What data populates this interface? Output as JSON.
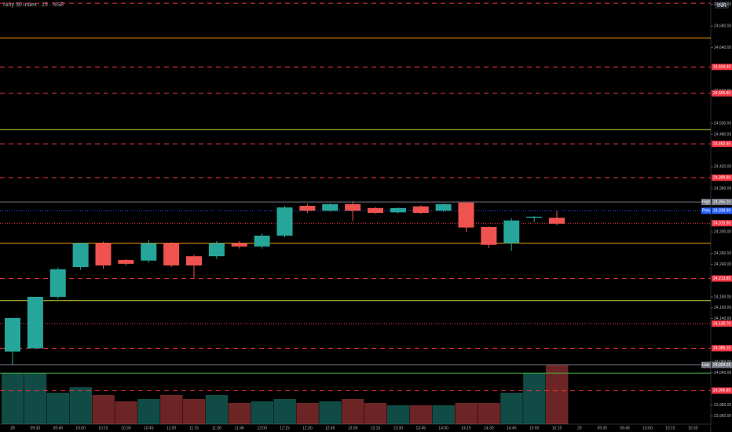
{
  "chart_data": {
    "type": "candlestick",
    "title": "Nifty 50 Index · 15 · NSE",
    "currency": "INR",
    "categories": [
      "28",
      "09:30",
      "09:45",
      "10:00",
      "10:15",
      "10:30",
      "10:45",
      "11:00",
      "11:15",
      "11:30",
      "11:45",
      "12:00",
      "12:15",
      "12:30",
      "12:45",
      "13:00",
      "13:15",
      "13:30",
      "13:45",
      "14:00",
      "14:15",
      "14:30",
      "14:45",
      "15:00",
      "15:15",
      "29",
      "09:30",
      "09:45",
      "10:00",
      "10:15",
      "10:30"
    ],
    "open": [
      24079,
      24085,
      24180,
      24235,
      24279,
      24248,
      24247,
      24279,
      24255,
      24255,
      24279,
      24273,
      24293,
      24348,
      24339,
      24351,
      24344,
      24336,
      24347,
      24339,
      24354,
      24309,
      24279,
      24326,
      24326,
      null,
      null,
      null,
      null,
      null,
      null
    ],
    "high": [
      24141,
      24180,
      24234,
      24280,
      24282,
      24250,
      24285,
      24281,
      24258,
      24283,
      24283,
      24297,
      24348,
      24352,
      24353,
      24356,
      24346,
      24345,
      24349,
      24352,
      24356,
      24310,
      24325,
      24329,
      24338,
      null,
      null,
      null,
      null,
      null,
      null
    ],
    "low": [
      24054,
      24085,
      24176,
      24230,
      24232,
      24238,
      24243,
      24235,
      24215,
      24250,
      24269,
      24269,
      24290,
      24335,
      24337,
      24320,
      24333,
      24334,
      24333,
      24337,
      24300,
      24270,
      24265,
      24318,
      24312,
      null,
      null,
      null,
      null,
      null,
      null
    ],
    "close": [
      24141,
      24180,
      24231,
      24279,
      24238,
      24241,
      24279,
      24238,
      24238,
      24279,
      24273,
      24293,
      24345,
      24339,
      24351,
      24339,
      24335,
      24344,
      24335,
      24351,
      24308,
      24276,
      24321,
      24328,
      24315,
      null,
      null,
      null,
      null,
      null,
      null
    ],
    "volume": [
      65,
      65,
      40,
      47,
      37,
      29,
      32,
      37,
      32,
      37,
      27,
      29,
      32,
      27,
      29,
      32,
      27,
      24,
      24,
      24,
      27,
      27,
      40,
      65,
      75,
      null,
      null,
      null,
      null,
      null,
      null
    ],
    "up_color": "#26a69a",
    "down_color": "#ef5350",
    "ylim": [
      23945,
      24728
    ],
    "yticks": [
      {
        "value": 24720,
        "label": "24,720.00"
      },
      {
        "value": 24680,
        "label": "24,680.00"
      },
      {
        "value": 24640,
        "label": "24,640.00"
      },
      {
        "value": 24560,
        "label": "24,560.00"
      },
      {
        "value": 24500,
        "label": "24,500.00"
      },
      {
        "value": 24480,
        "label": "24,480.00"
      },
      {
        "value": 24420,
        "label": "24,420.00"
      },
      {
        "value": 24380,
        "label": "24,380.00"
      },
      {
        "value": 24300,
        "label": "24,300.00"
      },
      {
        "value": 24260,
        "label": "24,260.00"
      },
      {
        "value": 24240,
        "label": "24,240.00"
      },
      {
        "value": 24180,
        "label": "24,180.00"
      },
      {
        "value": 24160,
        "label": "24,160.00"
      },
      {
        "value": 24140,
        "label": "24,140.00"
      },
      {
        "value": 24060,
        "label": "24,060.00"
      },
      {
        "value": 24040,
        "label": "24,040.00"
      },
      {
        "value": 23980,
        "label": "23,980.00"
      },
      {
        "value": 23960,
        "label": "23,960.00"
      }
    ],
    "levels": [
      {
        "value": 24722,
        "color": "#f23645",
        "style": "dashed"
      },
      {
        "value": 24658,
        "color": "#ff9800",
        "style": "solid"
      },
      {
        "value": 24604.4,
        "label": "24,604.40",
        "color": "#f23645",
        "style": "dashed"
      },
      {
        "value": 24555.8,
        "label": "24,555.80",
        "color": "#f23645",
        "style": "dashed"
      },
      {
        "value": 24489,
        "color": "#c6d33a",
        "style": "solid"
      },
      {
        "value": 24462.45,
        "label": "24,462.45",
        "color": "#f23645",
        "style": "dashed"
      },
      {
        "value": 24399.8,
        "label": "24,399.80",
        "color": "#f23645",
        "style": "dashed"
      },
      {
        "value": 24355.1,
        "label": "24,355.10",
        "tag": "High",
        "color": "#787b86",
        "style": "solid"
      },
      {
        "value": 24338.9,
        "label": "24,338.90",
        "tag": "Prev",
        "color": "#2962ff",
        "style": "dotted"
      },
      {
        "value": 24315.9,
        "label": "24,315.90",
        "color": "#f23645",
        "style": "dotted"
      },
      {
        "value": 24279,
        "color": "#ff9800",
        "style": "solid"
      },
      {
        "value": 24213.85,
        "label": "24,213.85",
        "color": "#f23645",
        "style": "dashed"
      },
      {
        "value": 24173,
        "color": "#c6d33a",
        "style": "solid"
      },
      {
        "value": 24130.7,
        "label": "24,130.70",
        "color": "#f23645",
        "style": "dotted"
      },
      {
        "value": 24085.1,
        "label": "24,085.10",
        "color": "#f23645",
        "style": "dashed"
      },
      {
        "value": 24054.25,
        "label": "24,054.25",
        "tag": "Low",
        "color": "#787b86",
        "style": "solid"
      },
      {
        "value": 24039,
        "color": "#4caf50",
        "style": "solid"
      },
      {
        "value": 24006.85,
        "label": "24,006.85",
        "color": "#f23645",
        "style": "dashed"
      }
    ]
  }
}
